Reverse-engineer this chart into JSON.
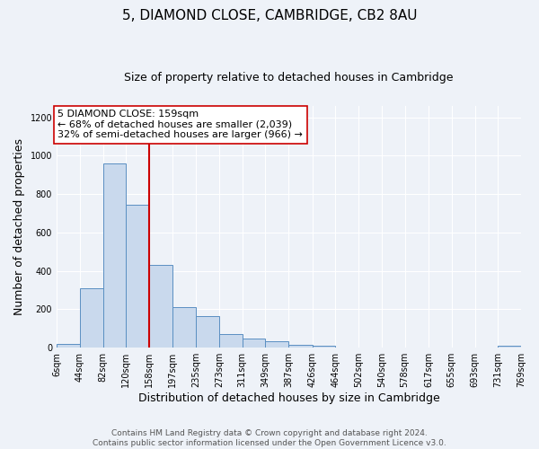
{
  "title": "5, DIAMOND CLOSE, CAMBRIDGE, CB2 8AU",
  "subtitle": "Size of property relative to detached houses in Cambridge",
  "xlabel": "Distribution of detached houses by size in Cambridge",
  "ylabel": "Number of detached properties",
  "bin_edges": [
    6,
    44,
    82,
    120,
    158,
    197,
    235,
    273,
    311,
    349,
    387,
    426,
    464,
    502,
    540,
    578,
    617,
    655,
    693,
    731,
    769
  ],
  "bin_labels": [
    "6sqm",
    "44sqm",
    "82sqm",
    "120sqm",
    "158sqm",
    "197sqm",
    "235sqm",
    "273sqm",
    "311sqm",
    "349sqm",
    "387sqm",
    "426sqm",
    "464sqm",
    "502sqm",
    "540sqm",
    "578sqm",
    "617sqm",
    "655sqm",
    "693sqm",
    "731sqm",
    "769sqm"
  ],
  "counts": [
    20,
    310,
    960,
    745,
    430,
    210,
    165,
    70,
    48,
    33,
    17,
    8,
    3,
    2,
    1,
    0,
    0,
    0,
    0,
    10
  ],
  "bar_color": "#c9d9ed",
  "bar_edge_color": "#5a8fc2",
  "property_line_x": 158,
  "property_line_color": "#cc0000",
  "annotation_text": "5 DIAMOND CLOSE: 159sqm\n← 68% of detached houses are smaller (2,039)\n32% of semi-detached houses are larger (966) →",
  "annotation_box_color": "#ffffff",
  "annotation_box_edge": "#cc0000",
  "ylim": [
    0,
    1260
  ],
  "yticks": [
    0,
    200,
    400,
    600,
    800,
    1000,
    1200
  ],
  "footer_line1": "Contains HM Land Registry data © Crown copyright and database right 2024.",
  "footer_line2": "Contains public sector information licensed under the Open Government Licence v3.0.",
  "bg_color": "#eef2f8",
  "plot_bg_color": "#eef2f8",
  "grid_color": "#ffffff",
  "title_fontsize": 11,
  "subtitle_fontsize": 9,
  "axis_label_fontsize": 9,
  "tick_fontsize": 7,
  "annotation_fontsize": 8,
  "footer_fontsize": 6.5
}
